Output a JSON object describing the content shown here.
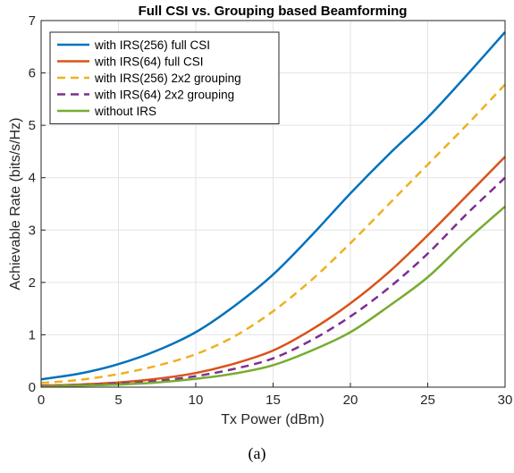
{
  "chart_data": {
    "type": "line",
    "title": "Full CSI vs. Grouping based Beamforming",
    "xlabel": "Tx Power (dBm)",
    "ylabel": "Achievable Rate (bits/s/Hz)",
    "xlim": [
      0,
      30
    ],
    "ylim": [
      0,
      7
    ],
    "xticks": [
      "0",
      "5",
      "10",
      "15",
      "20",
      "25",
      "30"
    ],
    "yticks": [
      "0",
      "1",
      "2",
      "3",
      "4",
      "5",
      "6",
      "7"
    ],
    "grid": true,
    "legend_position": "top-left",
    "x": [
      0,
      2.5,
      5,
      7.5,
      10,
      12.5,
      15,
      17.5,
      20,
      22.5,
      25,
      27.5,
      30
    ],
    "series": [
      {
        "name": "with IRS(256) full CSI",
        "color": "#0072BD",
        "style": "solid",
        "values": [
          0.15,
          0.26,
          0.44,
          0.7,
          1.05,
          1.55,
          2.15,
          2.9,
          3.7,
          4.45,
          5.15,
          5.95,
          6.78
        ]
      },
      {
        "name": "with IRS(64) full CSI",
        "color": "#D95319",
        "style": "solid",
        "values": [
          0.03,
          0.05,
          0.09,
          0.16,
          0.27,
          0.45,
          0.7,
          1.1,
          1.6,
          2.2,
          2.9,
          3.65,
          4.4
        ]
      },
      {
        "name": "with IRS(256) 2x2 grouping",
        "color": "#EDB120",
        "style": "dashed",
        "values": [
          0.08,
          0.14,
          0.25,
          0.41,
          0.63,
          0.97,
          1.45,
          2.05,
          2.75,
          3.5,
          4.25,
          5.0,
          5.78
        ]
      },
      {
        "name": "with IRS(64) 2x2 grouping",
        "color": "#7E2F8E",
        "style": "dashed",
        "values": [
          0.02,
          0.04,
          0.07,
          0.12,
          0.21,
          0.35,
          0.55,
          0.9,
          1.35,
          1.9,
          2.55,
          3.3,
          4.0
        ]
      },
      {
        "name": "without IRS",
        "color": "#77AC30",
        "style": "solid",
        "values": [
          0.01,
          0.03,
          0.05,
          0.09,
          0.16,
          0.26,
          0.42,
          0.7,
          1.05,
          1.55,
          2.1,
          2.8,
          3.45
        ]
      }
    ]
  },
  "caption": "(a)"
}
